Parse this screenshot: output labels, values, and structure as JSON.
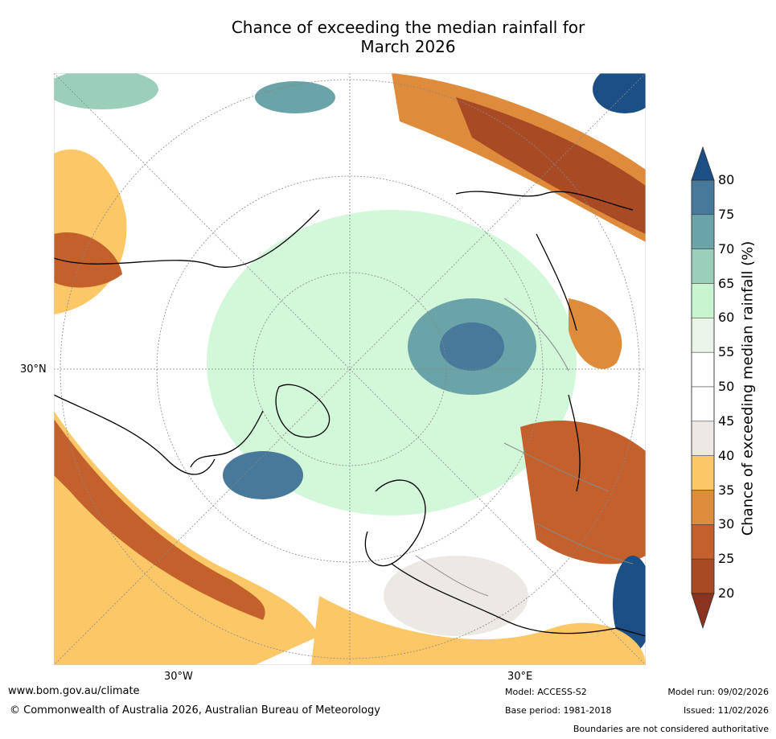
{
  "title": {
    "line1": "Chance of exceeding the median rainfall for",
    "line2": "March 2026"
  },
  "axes": {
    "lat_label": "30°N",
    "lon_left": "30°W",
    "lon_right": "30°E"
  },
  "colorbar": {
    "label": "Chance of exceeding median rainfall (%)",
    "ticks": [
      "80",
      "75",
      "70",
      "65",
      "60",
      "55",
      "50",
      "45",
      "40",
      "35",
      "30",
      "25",
      "20"
    ],
    "colors": [
      "#1b4f86",
      "#48789a",
      "#6aa3a8",
      "#9bcfbc",
      "#c8f5cf",
      "#eaf5ea",
      "#ffffff",
      "#ffffff",
      "#ece9e5",
      "#fcc867",
      "#de8c3c",
      "#c3602c",
      "#a84a24",
      "#8b3220"
    ]
  },
  "footer": {
    "url": "www.bom.gov.au/climate",
    "copyright": "© Commonwealth of Australia 2026, Australian Bureau of Meteorology",
    "model": "Model: ACCESS-S2",
    "model_run": "Model run: 09/02/2026",
    "base_period": "Base period: 1981-2018",
    "issued": "Issued: 11/02/2026",
    "boundaries": "Boundaries are not considered authoritative"
  }
}
